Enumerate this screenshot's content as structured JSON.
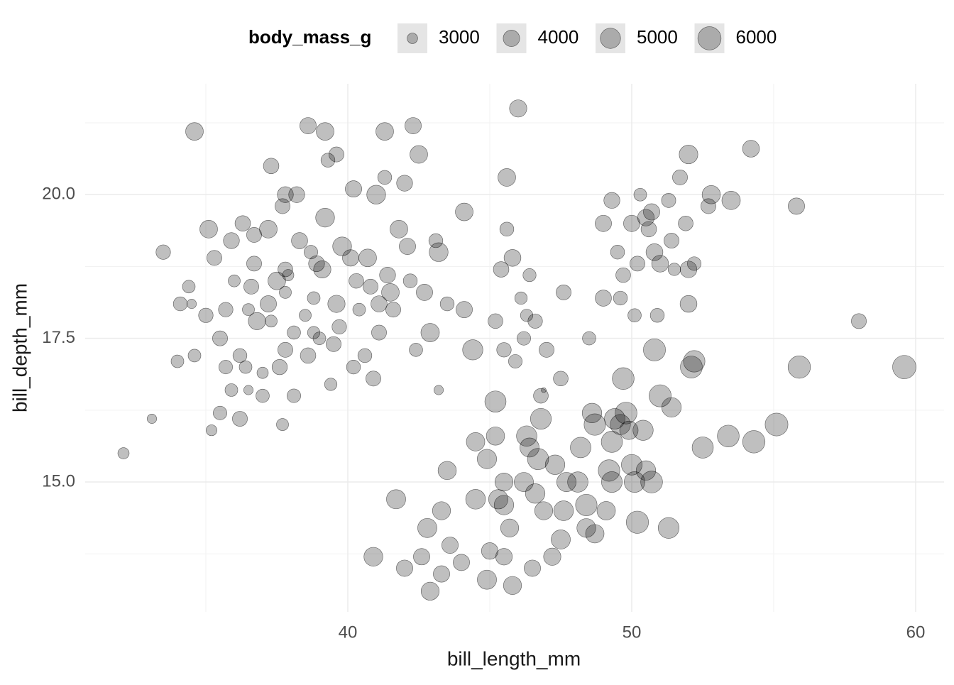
{
  "chart_data": {
    "type": "bubble",
    "x_label": "bill_length_mm",
    "y_label": "bill_depth_mm",
    "size_legend": {
      "title": "body_mass_g",
      "values": [
        3000,
        4000,
        5000,
        6000
      ]
    },
    "xlim": [
      30.75,
      61.0
    ],
    "ylim": [
      12.74,
      21.93
    ],
    "xticks": [
      40,
      50,
      60
    ],
    "yticks": [
      {
        "value": 15,
        "label": "15.0"
      },
      {
        "value": 17.5,
        "label": "17.5"
      },
      {
        "value": 20,
        "label": "20.0"
      }
    ],
    "xminor": [
      35,
      45,
      55
    ],
    "yminor": [
      13.75,
      16.25,
      18.75,
      21.25
    ],
    "grid": true,
    "legend": "top",
    "color": "#000000",
    "alpha": 0.25,
    "x": [
      32.1,
      33.1,
      33.5,
      34.6,
      34.0,
      34.1,
      34.4,
      34.5,
      34.6,
      35.0,
      35.1,
      35.2,
      35.3,
      35.5,
      35.5,
      35.7,
      35.7,
      35.9,
      35.9,
      36.0,
      36.2,
      36.2,
      36.3,
      36.4,
      36.5,
      36.5,
      36.6,
      36.7,
      36.7,
      36.8,
      37.0,
      37.0,
      37.2,
      37.2,
      37.3,
      37.3,
      37.5,
      37.6,
      37.7,
      37.7,
      37.8,
      37.8,
      37.8,
      37.8,
      37.9,
      38.1,
      38.1,
      38.2,
      38.3,
      38.5,
      38.6,
      38.6,
      38.7,
      38.8,
      38.8,
      38.9,
      39.0,
      39.1,
      39.2,
      39.2,
      39.3,
      39.4,
      39.5,
      39.6,
      39.6,
      39.7,
      39.8,
      40.1,
      40.2,
      40.2,
      40.3,
      40.4,
      40.6,
      40.7,
      40.8,
      40.9,
      41.0,
      41.1,
      41.1,
      41.3,
      41.3,
      41.4,
      41.5,
      41.6,
      41.8,
      42.0,
      42.1,
      42.2,
      42.3,
      42.4,
      42.5,
      42.7,
      42.9,
      43.1,
      43.2,
      43.2,
      43.5,
      44.1,
      44.1,
      42.9,
      40.9,
      41.7,
      42.0,
      42.6,
      42.8,
      43.3,
      43.3,
      43.5,
      43.6,
      44.0,
      44.5,
      44.5,
      44.4,
      44.9,
      44.9,
      45.0,
      45.2,
      45.2,
      45.3,
      45.5,
      45.5,
      45.5,
      45.7,
      45.8,
      46.2,
      46.3,
      46.4,
      46.5,
      46.6,
      46.7,
      46.8,
      46.9,
      47.2,
      47.3,
      47.5,
      47.6,
      47.7,
      48.1,
      48.2,
      48.4,
      48.4,
      48.6,
      48.7,
      48.7,
      49.1,
      49.2,
      49.3,
      49.3,
      49.4,
      49.6,
      49.7,
      49.8,
      49.9,
      50.0,
      50.1,
      50.2,
      50.4,
      50.5,
      50.7,
      50.8,
      51.0,
      51.4,
      51.3,
      52.1,
      52.2,
      52.5,
      53.4,
      54.3,
      55.1,
      55.9,
      59.6,
      58.0,
      46.0,
      45.6,
      45.2,
      45.4,
      45.5,
      45.6,
      45.8,
      45.9,
      46.1,
      46.2,
      46.3,
      46.4,
      46.6,
      46.8,
      46.9,
      47.0,
      47.5,
      47.6,
      48.5,
      49.0,
      49.3,
      49.0,
      49.5,
      49.6,
      49.7,
      50.0,
      50.1,
      50.2,
      50.3,
      50.5,
      50.6,
      50.7,
      50.8,
      50.9,
      51.0,
      51.3,
      51.4,
      51.5,
      51.7,
      51.9,
      52.0,
      52.0,
      52.0,
      52.2,
      52.7,
      52.8,
      53.5,
      54.2,
      55.8
    ],
    "values": [
      15.5,
      16.1,
      19.0,
      21.1,
      17.1,
      18.1,
      18.4,
      18.1,
      17.2,
      17.9,
      19.4,
      15.9,
      18.9,
      17.5,
      16.2,
      17.0,
      18.0,
      19.2,
      16.6,
      18.5,
      17.2,
      16.1,
      19.5,
      17.0,
      16.6,
      18.0,
      18.4,
      19.3,
      18.8,
      17.8,
      16.5,
      16.9,
      18.1,
      19.4,
      20.5,
      17.8,
      18.5,
      17.0,
      16.0,
      19.8,
      20.0,
      18.3,
      17.3,
      18.7,
      18.6,
      16.5,
      17.6,
      20.0,
      19.2,
      17.9,
      21.2,
      17.2,
      19.0,
      17.6,
      18.2,
      18.8,
      17.5,
      18.7,
      21.1,
      19.6,
      20.6,
      16.7,
      17.4,
      20.7,
      18.1,
      17.7,
      19.1,
      18.9,
      20.1,
      17.0,
      18.5,
      18.0,
      17.2,
      18.9,
      18.4,
      16.8,
      20.0,
      17.6,
      18.1,
      21.1,
      20.3,
      18.6,
      18.3,
      18.0,
      19.4,
      20.2,
      19.1,
      18.5,
      21.2,
      17.3,
      20.7,
      18.3,
      17.6,
      19.2,
      19.0,
      16.6,
      18.1,
      19.7,
      18.0,
      13.1,
      13.7,
      14.7,
      13.5,
      13.7,
      14.2,
      13.4,
      14.5,
      15.2,
      13.9,
      13.6,
      15.7,
      14.7,
      17.3,
      13.3,
      15.4,
      13.8,
      16.4,
      15.8,
      14.7,
      13.7,
      15.0,
      14.6,
      14.2,
      13.2,
      15.0,
      15.8,
      15.6,
      13.5,
      14.8,
      15.4,
      16.1,
      14.5,
      13.7,
      15.3,
      14.0,
      14.5,
      15.0,
      15.0,
      15.6,
      14.2,
      14.6,
      16.2,
      14.1,
      16.0,
      14.5,
      15.2,
      15.0,
      15.7,
      16.1,
      16.0,
      16.8,
      16.2,
      15.9,
      15.3,
      15.0,
      14.3,
      15.9,
      15.2,
      15.0,
      17.3,
      16.5,
      16.3,
      14.2,
      17.0,
      17.1,
      15.6,
      15.8,
      15.7,
      16.0,
      17.0,
      17.0,
      17.8,
      21.5,
      20.3,
      17.8,
      18.7,
      17.3,
      19.4,
      18.9,
      17.1,
      18.2,
      17.5,
      17.9,
      18.6,
      17.8,
      16.5,
      16.6,
      17.3,
      16.8,
      18.3,
      17.5,
      18.2,
      19.9,
      19.5,
      19.0,
      18.2,
      18.6,
      19.5,
      17.9,
      18.8,
      20.0,
      19.6,
      19.4,
      19.7,
      19.0,
      17.9,
      18.8,
      19.9,
      19.2,
      18.7,
      20.3,
      19.5,
      20.7,
      18.7,
      18.1,
      18.8,
      19.8,
      20.0,
      19.9,
      20.8,
      19.8
    ],
    "sizes": [
      3100,
      2900,
      3600,
      4300,
      3300,
      3500,
      3300,
      2900,
      3300,
      3600,
      4300,
      3050,
      3700,
      3700,
      3450,
      3450,
      3600,
      3900,
      3300,
      3200,
      3500,
      3700,
      3800,
      3300,
      2900,
      3200,
      3700,
      3700,
      3700,
      4200,
      3400,
      3100,
      4000,
      4300,
      3800,
      3200,
      4300,
      3750,
      3200,
      3700,
      3900,
      3200,
      3700,
      3650,
      3100,
      3450,
      3400,
      3900,
      3950,
      3200,
      4000,
      3800,
      3450,
      3250,
      3300,
      3900,
      3300,
      4200,
      4300,
      4600,
      3500,
      3250,
      3700,
      3700,
      4200,
      3600,
      4600,
      4000,
      4000,
      3500,
      3650,
      3300,
      3500,
      4300,
      3700,
      3700,
      4600,
      3700,
      3950,
      4300,
      3500,
      3900,
      4300,
      3700,
      4300,
      3900,
      4000,
      3500,
      4000,
      3400,
      4300,
      4000,
      4500,
      3500,
      4600,
      2900,
      3500,
      4300,
      4000,
      4400,
      4600,
      4700,
      4000,
      4000,
      4700,
      4000,
      4400,
      4450,
      4000,
      4000,
      4500,
      4850,
      5000,
      4700,
      4750,
      4050,
      5300,
      4450,
      4750,
      4050,
      4400,
      4800,
      4400,
      4400,
      4700,
      5050,
      4700,
      4000,
      4800,
      5300,
      5200,
      4400,
      4200,
      4800,
      4700,
      4850,
      4750,
      5050,
      5100,
      4600,
      5400,
      4800,
      4500,
      5400,
      4500,
      5400,
      5150,
      5300,
      5100,
      5000,
      5500,
      5500,
      4500,
      5150,
      5150,
      5650,
      5000,
      4800,
      5500,
      5600,
      5600,
      4800,
      5200,
      5550,
      5400,
      5300,
      5500,
      5700,
      5850,
      5700,
      6050,
      3700,
      4200,
      4300,
      3650,
      3800,
      3600,
      3500,
      4100,
      3450,
      3250,
      3450,
      3250,
      3350,
      3600,
      3650,
      2700,
      3700,
      3650,
      3700,
      3400,
      3950,
      3900,
      4000,
      3500,
      3500,
      3650,
      4000,
      3400,
      3700,
      3300,
      4050,
      3800,
      4000,
      4100,
      3500,
      4100,
      3550,
      3700,
      3250,
      3700,
      3650,
      4550,
      4050,
      4100,
      3450,
      3700,
      4450,
      4500,
      4100,
      4000
    ]
  }
}
